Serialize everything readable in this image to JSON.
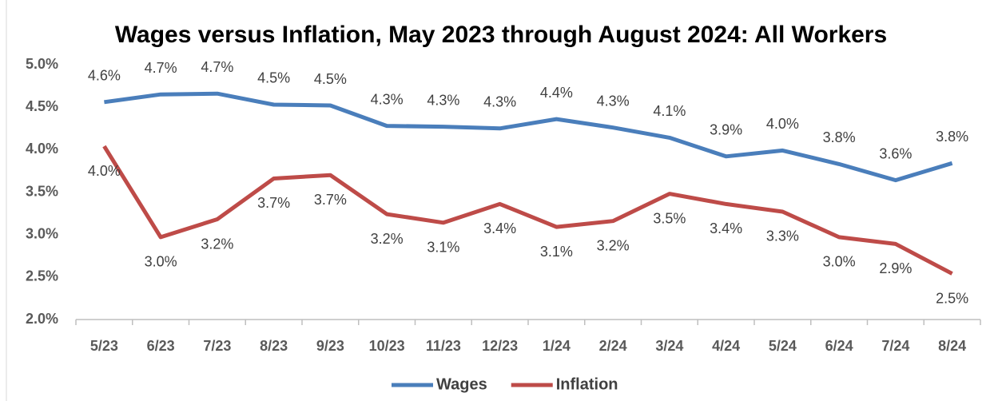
{
  "chart_data": {
    "type": "line",
    "title": "Wages versus Inflation, May 2023 through August 2024: All Workers",
    "categories": [
      "5/23",
      "6/23",
      "7/23",
      "8/23",
      "9/23",
      "10/23",
      "11/23",
      "12/23",
      "1/24",
      "2/24",
      "3/24",
      "4/24",
      "5/24",
      "6/24",
      "7/24",
      "8/24"
    ],
    "series": [
      {
        "name": "Wages",
        "color": "#4a7ebb",
        "values": [
          4.56,
          4.65,
          4.66,
          4.53,
          4.52,
          4.28,
          4.27,
          4.25,
          4.36,
          4.26,
          4.14,
          3.92,
          3.99,
          3.83,
          3.64,
          3.84
        ],
        "value_labels": [
          "4.6%",
          "4.7%",
          "4.7%",
          "4.5%",
          "4.5%",
          "4.3%",
          "4.3%",
          "4.3%",
          "4.4%",
          "4.3%",
          "4.1%",
          "3.9%",
          "4.0%",
          "3.8%",
          "3.6%",
          "3.8%"
        ]
      },
      {
        "name": "Inflation",
        "color": "#be4b48",
        "values": [
          4.04,
          2.97,
          3.18,
          3.66,
          3.7,
          3.24,
          3.14,
          3.36,
          3.09,
          3.16,
          3.48,
          3.36,
          3.27,
          2.97,
          2.89,
          2.54
        ],
        "value_labels": [
          "4.0%",
          "3.0%",
          "3.2%",
          "3.7%",
          "3.7%",
          "3.2%",
          "3.1%",
          "3.4%",
          "3.1%",
          "3.2%",
          "3.5%",
          "3.4%",
          "3.3%",
          "3.0%",
          "2.9%",
          "2.5%"
        ]
      }
    ],
    "ylim": [
      2.0,
      5.0
    ],
    "yticks": [
      {
        "value": 2.0,
        "label": "2.0%"
      },
      {
        "value": 2.5,
        "label": "2.5%"
      },
      {
        "value": 3.0,
        "label": "3.0%"
      },
      {
        "value": 3.5,
        "label": "3.5%"
      },
      {
        "value": 4.0,
        "label": "4.0%"
      },
      {
        "value": 4.5,
        "label": "4.5%"
      },
      {
        "value": 5.0,
        "label": "5.0%"
      }
    ],
    "legend": "bottom"
  }
}
